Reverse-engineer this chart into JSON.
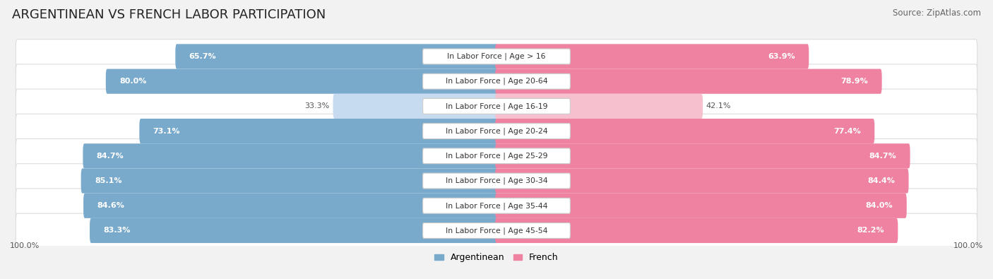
{
  "title": "ARGENTINEAN VS FRENCH LABOR PARTICIPATION",
  "source": "Source: ZipAtlas.com",
  "categories": [
    "In Labor Force | Age > 16",
    "In Labor Force | Age 20-64",
    "In Labor Force | Age 16-19",
    "In Labor Force | Age 20-24",
    "In Labor Force | Age 25-29",
    "In Labor Force | Age 30-34",
    "In Labor Force | Age 35-44",
    "In Labor Force | Age 45-54"
  ],
  "argentinean_values": [
    65.7,
    80.0,
    33.3,
    73.1,
    84.7,
    85.1,
    84.6,
    83.3
  ],
  "french_values": [
    63.9,
    78.9,
    42.1,
    77.4,
    84.7,
    84.4,
    84.0,
    82.2
  ],
  "arg_color": "#79AACC",
  "arg_color_light": "#C6DBEF",
  "french_color": "#EE82A0",
  "french_color_light": "#F7C0CE",
  "bg_color": "#F2F2F2",
  "row_bg_color": "#FFFFFF",
  "row_outline_color": "#DDDDDD",
  "label_bg_color": "#FFFFFF",
  "label_border_color": "#CCCCCC",
  "max_value": 100.0,
  "title_fontsize": 13,
  "value_fontsize": 8,
  "cat_fontsize": 7.8,
  "legend_fontsize": 9,
  "source_fontsize": 8.5
}
